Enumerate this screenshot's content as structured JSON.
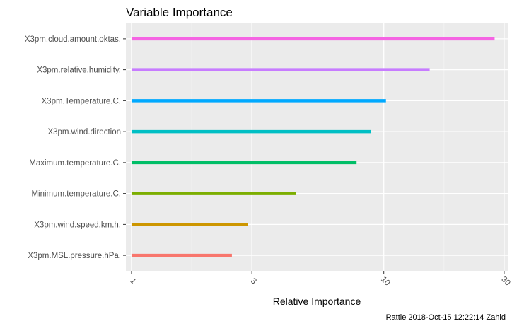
{
  "chart_data": {
    "type": "bar",
    "title": "Variable Importance",
    "xlabel": "Relative Importance",
    "ylabel": "",
    "xscale": "log10",
    "xlim": [
      0.95,
      31
    ],
    "xticks": [
      1,
      3,
      10,
      30
    ],
    "grid": true,
    "legend": "none",
    "orientation": "horizontal",
    "caption": "Rattle 2018-Oct-15 12:22:14 Zahid",
    "bars": [
      {
        "name": "X3pm.cloud.amount.oktas.",
        "value": 27.5,
        "color": "#F564E3"
      },
      {
        "name": "X3pm.relative.humidity.",
        "value": 15.2,
        "color": "#C77CFF"
      },
      {
        "name": "X3pm.Temperature.C.",
        "value": 10.2,
        "color": "#00A9FF"
      },
      {
        "name": "X3pm.wind.direction",
        "value": 8.9,
        "color": "#00BFC4"
      },
      {
        "name": "Maximum.temperature.C.",
        "value": 7.8,
        "color": "#00BE67"
      },
      {
        "name": "Minimum.temperature.C.",
        "value": 4.5,
        "color": "#7CAE00"
      },
      {
        "name": "X3pm.wind.speed.km.h.",
        "value": 2.9,
        "color": "#CD9600"
      },
      {
        "name": "X3pm.MSL.pressure.hPa.",
        "value": 2.5,
        "color": "#F8766D"
      }
    ]
  }
}
